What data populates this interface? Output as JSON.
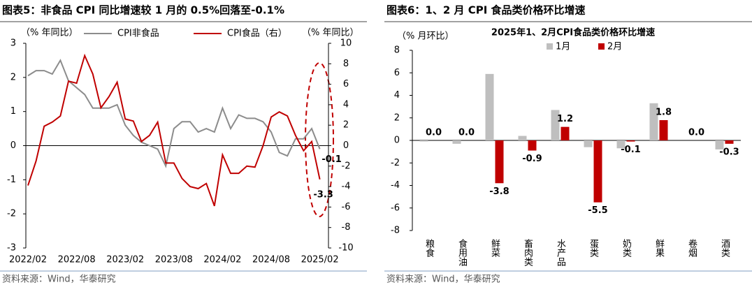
{
  "chart_data": [
    {
      "type": "line",
      "title": "图表5：非食品 CPI 同比增速较 1 月的 0.5%回落至-0.1%",
      "y_label": "（% 年同比）",
      "y2_label": "（% 年同比）",
      "categories": [
        "2022/02",
        null,
        null,
        null,
        null,
        null,
        "2022/08",
        null,
        null,
        null,
        null,
        null,
        "2023/02",
        null,
        null,
        null,
        null,
        null,
        "2023/08",
        null,
        null,
        null,
        null,
        null,
        "2024/02",
        null,
        null,
        null,
        null,
        null,
        "2024/08",
        null,
        null,
        null,
        null,
        null,
        "2025/02"
      ],
      "series": [
        {
          "name": "CPI非食品",
          "color": "#8c8c8c",
          "values": [
            2.05,
            2.2,
            2.2,
            2.1,
            2.5,
            1.9,
            1.7,
            1.5,
            1.1,
            1.1,
            1.1,
            1.2,
            0.6,
            0.3,
            0.1,
            0.0,
            -0.1,
            -0.6,
            0.5,
            0.7,
            0.7,
            0.4,
            0.5,
            0.4,
            1.1,
            0.5,
            0.9,
            0.8,
            0.8,
            0.7,
            0.4,
            -0.2,
            -0.3,
            0.2,
            0.2,
            0.5,
            -0.1
          ],
          "value_labels": [
            null,
            null,
            null,
            null,
            null,
            null,
            null,
            null,
            null,
            null,
            null,
            null,
            null,
            null,
            null,
            null,
            null,
            null,
            null,
            null,
            null,
            null,
            null,
            null,
            null,
            null,
            null,
            null,
            null,
            null,
            null,
            null,
            null,
            null,
            null,
            null,
            "-0.1"
          ]
        },
        {
          "name": "CPI食品（右）",
          "color": "#c00000",
          "axis": "y2",
          "values": [
            -3.9,
            -1.5,
            1.9,
            2.3,
            2.9,
            6.3,
            6.1,
            8.8,
            7.0,
            3.7,
            4.8,
            6.2,
            2.6,
            2.4,
            0.4,
            1.0,
            2.3,
            -1.7,
            -1.7,
            -3.2,
            -4.0,
            -4.2,
            -3.7,
            -5.9,
            -0.9,
            -2.7,
            -2.7,
            -2.0,
            -2.1,
            0.0,
            2.8,
            3.3,
            2.9,
            1.0,
            -0.5,
            0.4,
            -3.3
          ],
          "value_labels": [
            null,
            null,
            null,
            null,
            null,
            null,
            null,
            null,
            null,
            null,
            null,
            null,
            null,
            null,
            null,
            null,
            null,
            null,
            null,
            null,
            null,
            null,
            null,
            null,
            null,
            null,
            null,
            null,
            null,
            null,
            null,
            null,
            null,
            null,
            null,
            null,
            "-3.3"
          ]
        }
      ],
      "ylim": [
        -3,
        3
      ],
      "yticks": [
        -3,
        -2,
        -1,
        0,
        1,
        2,
        3
      ],
      "y2lim": [
        -10,
        10
      ],
      "y2ticks": [
        -10,
        -8,
        -6,
        -4,
        -2,
        0,
        2,
        4,
        6,
        8,
        10
      ],
      "source": "资料来源：Wind，华泰研究"
    },
    {
      "type": "bar",
      "title": "图表6：1、2 月 CPI 食品类价格环比增速",
      "subtitle": "2025年1、2月CPI食品类价格环比增速",
      "y_label": "（% 月环比）",
      "categories": [
        "粮食",
        "食用油",
        "鲜菜",
        "畜肉类",
        "水产品",
        "蛋类",
        "奶类",
        "鲜果",
        "卷烟",
        "酒类"
      ],
      "series": [
        {
          "name": "1月",
          "color": "#bfbfbf",
          "values": [
            -0.1,
            -0.3,
            5.9,
            0.4,
            2.7,
            -0.6,
            -0.7,
            3.3,
            0.0,
            -0.8
          ]
        },
        {
          "name": "2月",
          "color": "#c00000",
          "values": [
            0.0,
            0.0,
            -3.8,
            -0.9,
            1.2,
            -5.5,
            -0.1,
            1.8,
            0.0,
            -0.3
          ],
          "value_labels": [
            "0.0",
            "0.0",
            "-3.8",
            "-0.9",
            "1.2",
            "-5.5",
            "-0.1",
            "1.8",
            "0.0",
            "-0.3"
          ]
        }
      ],
      "ylim": [
        -8,
        8
      ],
      "yticks": [
        -8,
        -6,
        -4,
        -2,
        0,
        2,
        4,
        6,
        8
      ],
      "source": "资料来源：Wind，华泰研究"
    }
  ]
}
